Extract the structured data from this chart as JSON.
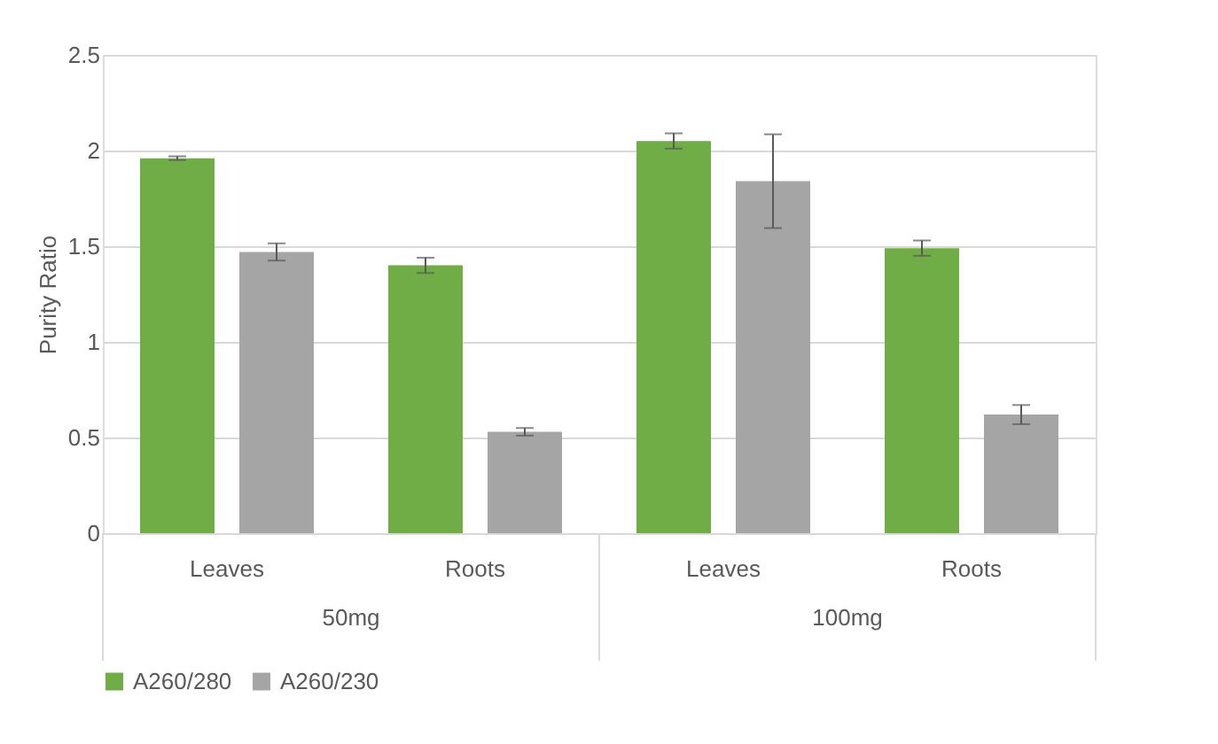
{
  "chart_data": {
    "type": "bar",
    "ylabel": "Purity Ratio",
    "categories": [
      "Leaves",
      "Roots",
      "Leaves",
      "Roots"
    ],
    "series": [
      {
        "name": "A260/280",
        "color": "#70ad47",
        "values": [
          1.96,
          1.4,
          2.05,
          1.49
        ],
        "errors": [
          0.01,
          0.04,
          0.04,
          0.04
        ]
      },
      {
        "name": "A260/230",
        "color": "#a5a5a5",
        "values": [
          1.47,
          0.53,
          1.84,
          0.62
        ],
        "errors": [
          0.045,
          0.02,
          0.245,
          0.05
        ]
      }
    ],
    "annotations": [
      "50mg",
      "100mg"
    ],
    "ylim": [
      0,
      2.5
    ],
    "yticks": [
      0,
      0.5,
      1,
      1.5,
      2,
      2.5
    ],
    "grid": "y",
    "legend": "bottom"
  }
}
